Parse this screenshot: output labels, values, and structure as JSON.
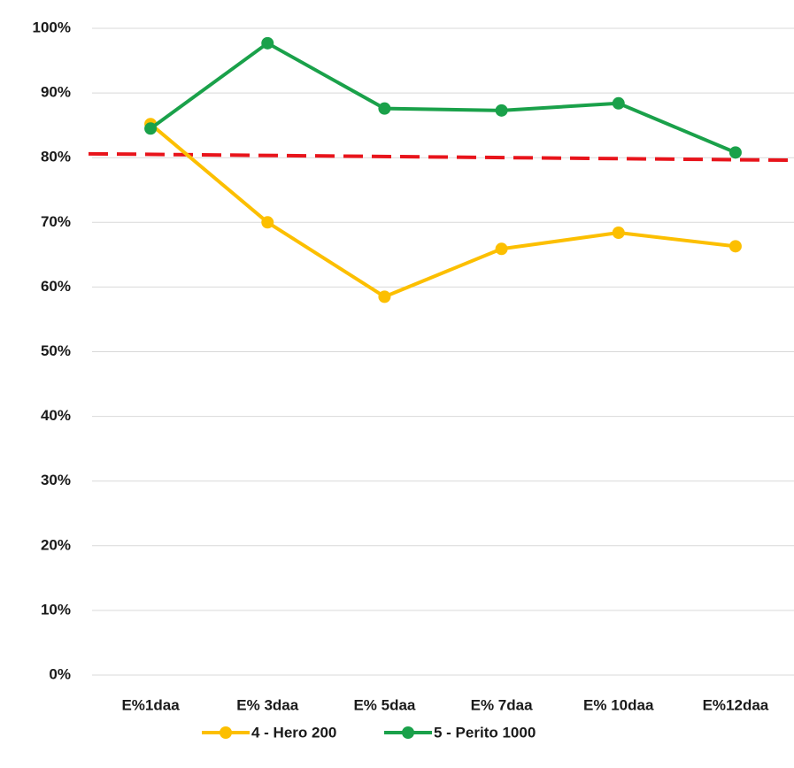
{
  "chart_data": {
    "type": "line",
    "categories": [
      "E%1daa",
      "E% 3daa",
      "E% 5daa",
      "E% 7daa",
      "E% 10daa",
      "E%12daa"
    ],
    "series": [
      {
        "name": "4 - Hero 200",
        "color": "#fcbf00",
        "values": [
          85.2,
          70.0,
          58.5,
          65.9,
          68.4,
          66.3
        ]
      },
      {
        "name": "5 - Perito 1000",
        "color": "#1aa14a",
        "values": [
          84.5,
          97.7,
          87.6,
          87.3,
          88.4,
          80.8
        ]
      }
    ],
    "reference_line": {
      "values": [
        80.6,
        79.6
      ],
      "color": "#e8141b",
      "dashed": true
    },
    "ylim": [
      0,
      100
    ],
    "yticks": [
      {
        "value": 0,
        "label": "0%"
      },
      {
        "value": 10,
        "label": "10%"
      },
      {
        "value": 20,
        "label": "20%"
      },
      {
        "value": 30,
        "label": "30%"
      },
      {
        "value": 40,
        "label": "40%"
      },
      {
        "value": 50,
        "label": "50%"
      },
      {
        "value": 60,
        "label": "60%"
      },
      {
        "value": 70,
        "label": "70%"
      },
      {
        "value": 80,
        "label": "80%"
      },
      {
        "value": 90,
        "label": "90%"
      },
      {
        "value": 100,
        "label": "100%"
      }
    ],
    "grid": true,
    "legend": "bottom"
  }
}
